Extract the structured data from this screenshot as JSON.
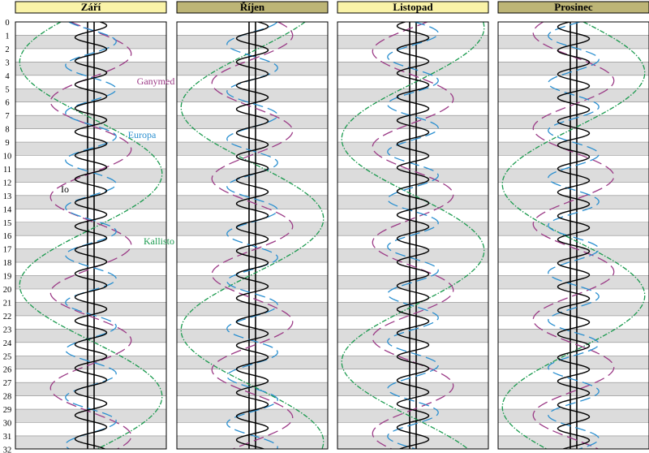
{
  "chart_data": {
    "type": "line",
    "title": "",
    "day_labels": [
      "0",
      "1",
      "2",
      "3",
      "4",
      "5",
      "6",
      "7",
      "8",
      "9",
      "10",
      "11",
      "12",
      "13",
      "14",
      "15",
      "16",
      "17",
      "18",
      "19",
      "20",
      "21",
      "22",
      "23",
      "24",
      "25",
      "26",
      "27",
      "28",
      "29",
      "30",
      "31",
      "32"
    ],
    "months": [
      {
        "name": "Září",
        "days": 30,
        "start_day": 0
      },
      {
        "name": "Říjen",
        "days": 31,
        "start_day": 30
      },
      {
        "name": "Listopad",
        "days": 30,
        "start_day": 61
      },
      {
        "name": "Prosinec",
        "days": 31,
        "start_day": 91
      }
    ],
    "series": [
      {
        "name": "Io",
        "period_days": 1.769,
        "amplitude": 1.0,
        "phase_deg": 35,
        "color": "#000000",
        "dash": "solid"
      },
      {
        "name": "Europa",
        "period_days": 3.551,
        "amplitude": 1.6,
        "phase_deg": 300,
        "color": "#2a8fd0",
        "dash": "long-dash"
      },
      {
        "name": "Ganymed",
        "period_days": 7.155,
        "amplitude": 2.55,
        "phase_deg": 330,
        "color": "#9b3a86",
        "dash": "long-dash"
      },
      {
        "name": "Kallisto",
        "period_days": 16.689,
        "amplitude": 4.5,
        "phase_deg": 205,
        "color": "#1a9a4e",
        "dash": "dash-dot"
      }
    ],
    "labels_shown_in": "Září",
    "colors": {
      "header_fill": "#faf3a8",
      "header_fill_alt": "#bdb576",
      "stripe": "#dcdcdc"
    }
  }
}
